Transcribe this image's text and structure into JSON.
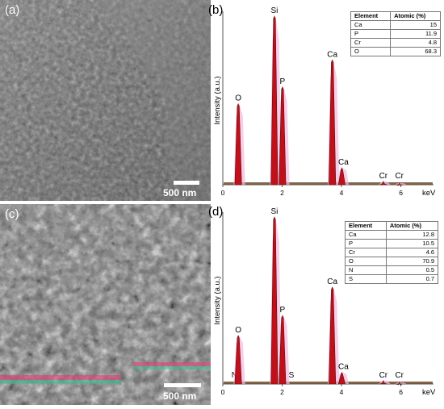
{
  "panels": {
    "a": {
      "tag": "(a)",
      "scale": "500 nm"
    },
    "b": {
      "tag": "(b)"
    },
    "c": {
      "tag": "(c)",
      "scale": "500 nm"
    },
    "d": {
      "tag": "(d)"
    }
  },
  "chart_data": [
    {
      "type": "bar",
      "panel": "(b)",
      "ylabel": "Intensity (a.u.)",
      "xlabel": "keV",
      "xlim": [
        0,
        7.1
      ],
      "xticks": [
        "0",
        "2",
        "4",
        "6"
      ],
      "peaks": [
        {
          "label": "O",
          "x": 0.52,
          "y": 0.48
        },
        {
          "label": "Si",
          "x": 1.74,
          "y": 1.0
        },
        {
          "label": "P",
          "x": 2.01,
          "y": 0.58
        },
        {
          "label": "Ca",
          "x": 3.69,
          "y": 0.74
        },
        {
          "label": "Ca",
          "x": 4.01,
          "y": 0.1
        },
        {
          "label": "Cr",
          "x": 5.41,
          "y": 0.02
        },
        {
          "label": "Cr",
          "x": 5.95,
          "y": 0.01
        }
      ],
      "table": {
        "headers": [
          "Element",
          "Atomic (%)"
        ],
        "rows": [
          [
            "Ca",
            "15"
          ],
          [
            "P",
            "11.9"
          ],
          [
            "Cr",
            "4.8"
          ],
          [
            "O",
            "68.3"
          ]
        ]
      }
    },
    {
      "type": "bar",
      "panel": "(d)",
      "ylabel": "Intensity (a.u.)",
      "xlabel": "keV",
      "xlim": [
        0,
        7.1
      ],
      "xticks": [
        "0",
        "2",
        "4",
        "6"
      ],
      "peaks": [
        {
          "label": "N",
          "x": 0.39,
          "y": 0.0
        },
        {
          "label": "O",
          "x": 0.52,
          "y": 0.29
        },
        {
          "label": "Si",
          "x": 1.74,
          "y": 1.0
        },
        {
          "label": "P",
          "x": 2.01,
          "y": 0.41
        },
        {
          "label": "S",
          "x": 2.31,
          "y": 0.0
        },
        {
          "label": "Ca",
          "x": 3.69,
          "y": 0.58
        },
        {
          "label": "Ca",
          "x": 4.01,
          "y": 0.07
        },
        {
          "label": "Cr",
          "x": 5.41,
          "y": 0.02
        },
        {
          "label": "Cr",
          "x": 5.95,
          "y": 0.01
        }
      ],
      "table": {
        "headers": [
          "Element",
          "Atomic (%)"
        ],
        "rows": [
          [
            "Ca",
            "12.8"
          ],
          [
            "P",
            "10.5"
          ],
          [
            "Cr",
            "4.6"
          ],
          [
            "O",
            "70.9"
          ],
          [
            "N",
            "0.5"
          ],
          [
            "S",
            "0.7"
          ]
        ]
      }
    }
  ]
}
